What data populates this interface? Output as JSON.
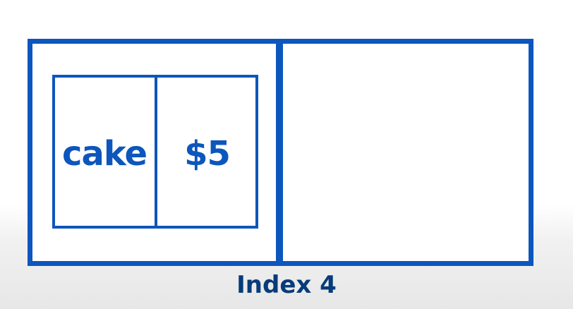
{
  "diagram": {
    "entry": {
      "key": "cake",
      "value": "$5"
    },
    "index_label": "Index 4",
    "colors": {
      "stroke": "#0d56bd",
      "text": "#0d56bd",
      "label": "#073b7a",
      "background": "#ffffff"
    }
  }
}
